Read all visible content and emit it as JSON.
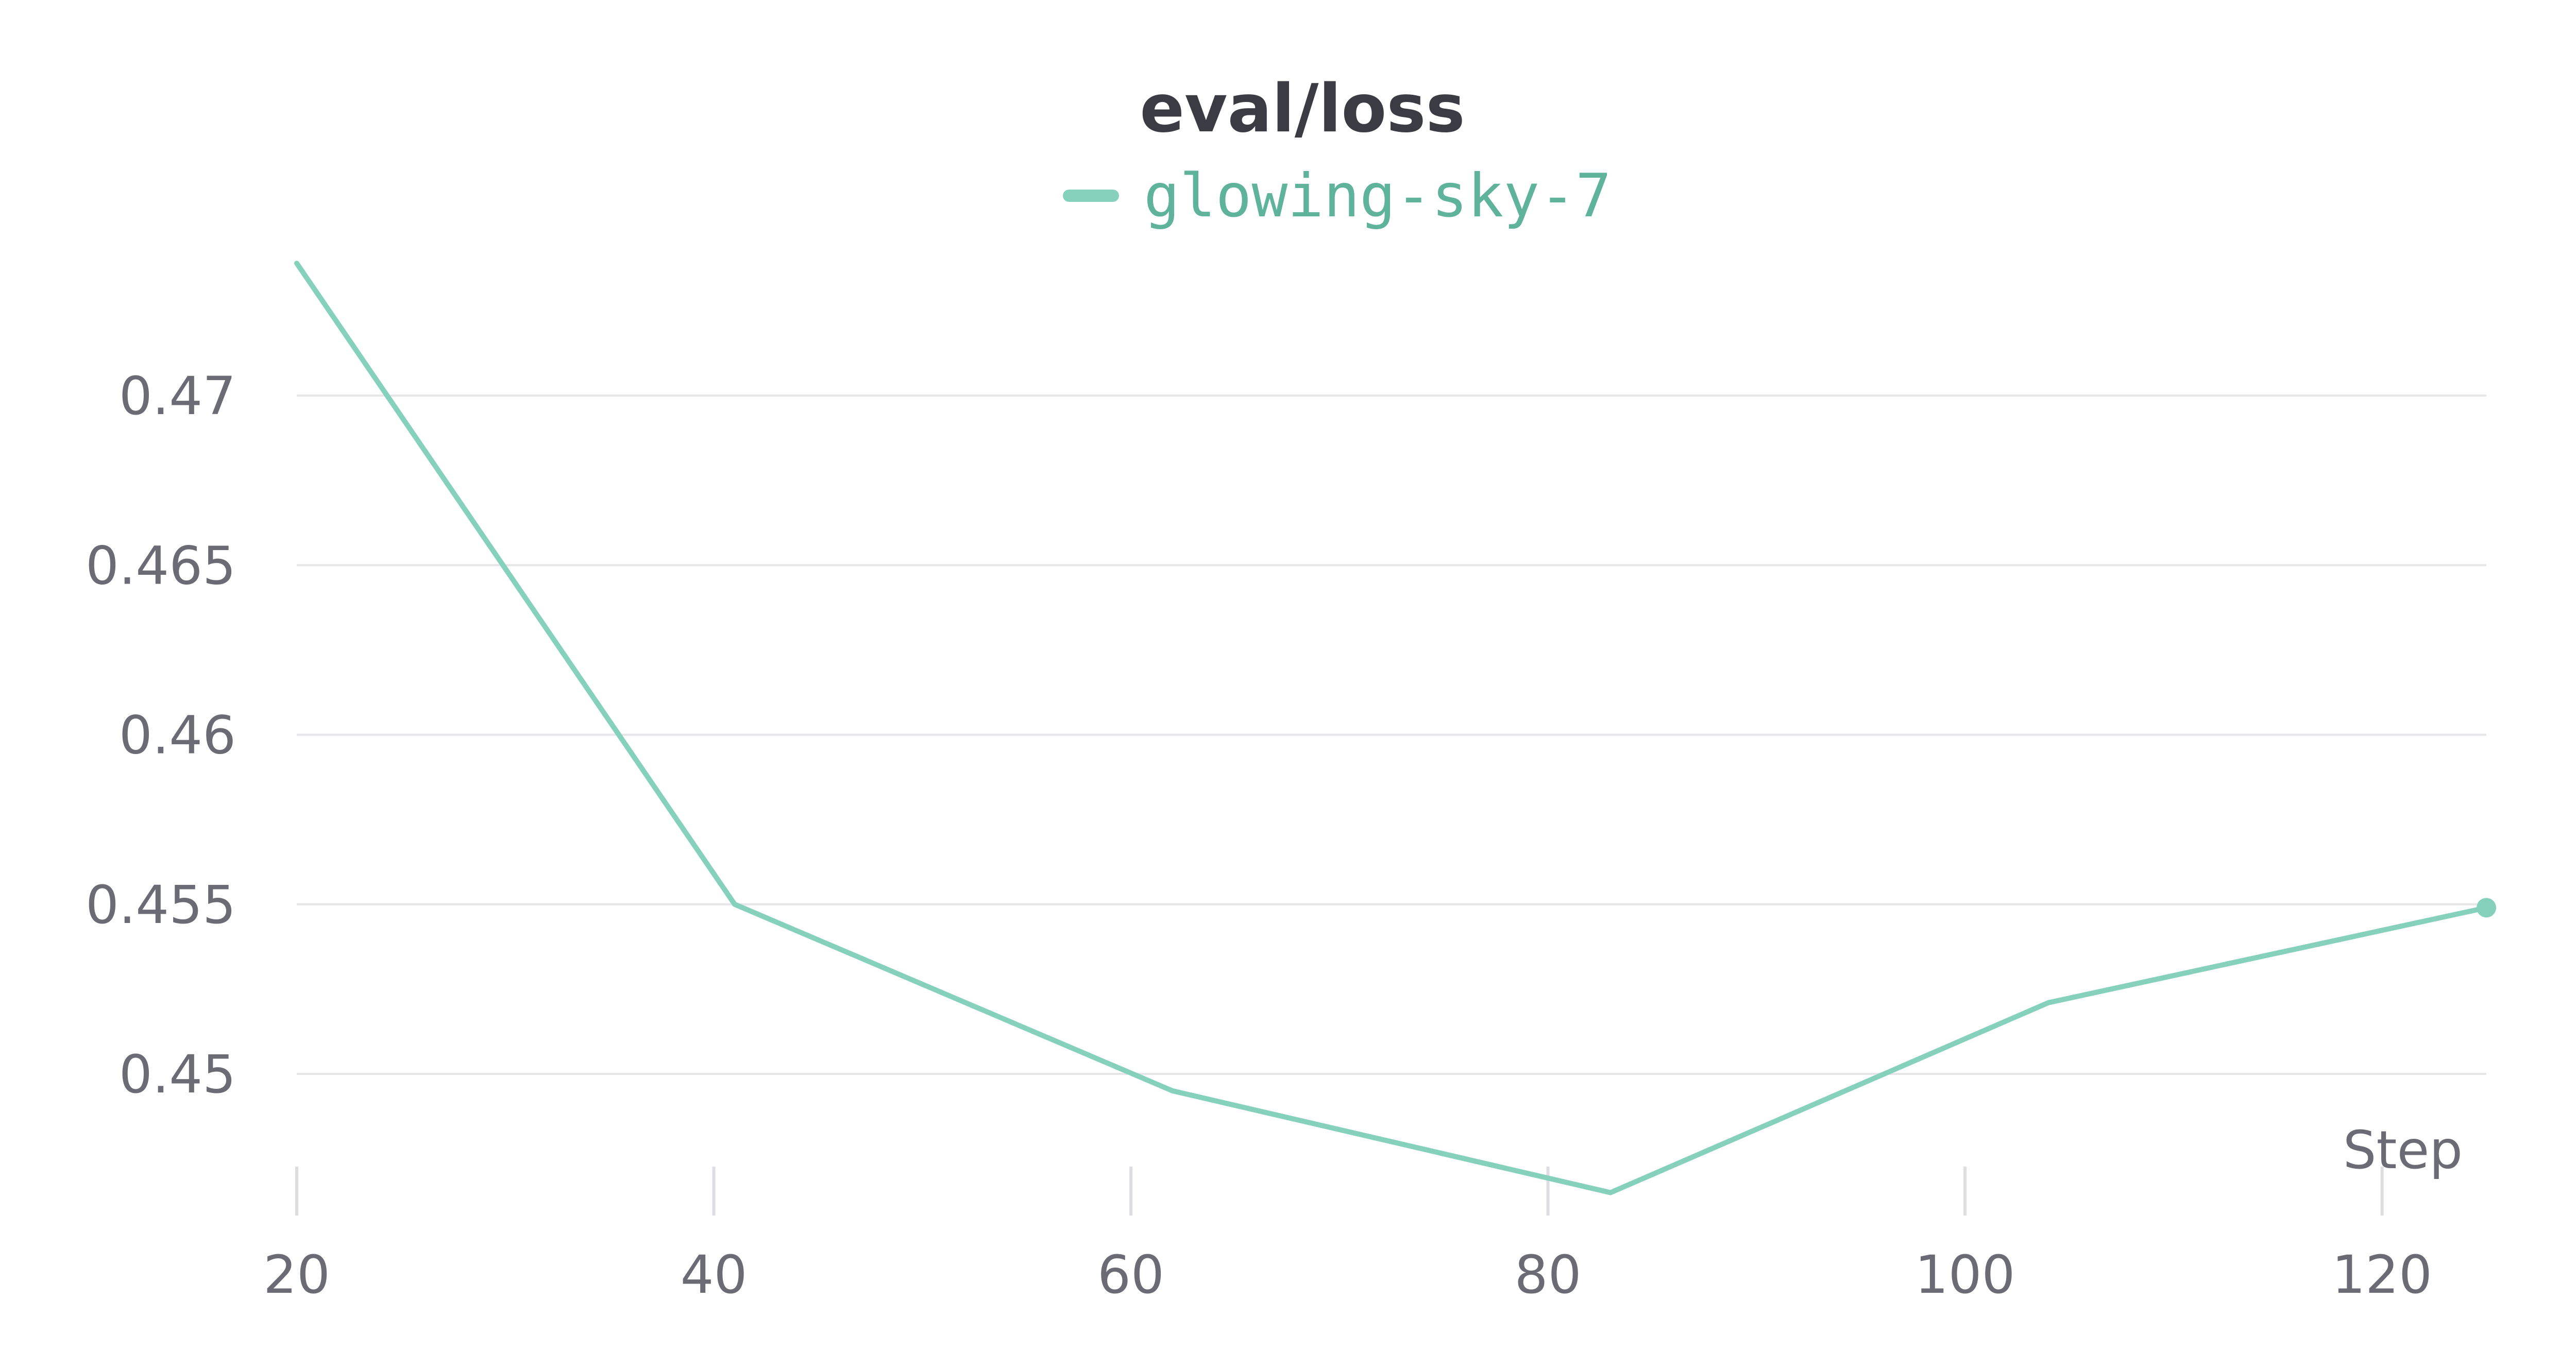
{
  "chart_data": {
    "type": "line",
    "title": "eval/loss",
    "xlabel": "Step",
    "ylabel": "",
    "x_ticks": [
      20,
      40,
      60,
      80,
      100,
      120
    ],
    "y_ticks": [
      0.45,
      0.455,
      0.46,
      0.465,
      0.47
    ],
    "y_tick_labels": [
      "0.45",
      "0.455",
      "0.46",
      "0.465",
      "0.47"
    ],
    "xlim": [
      20,
      125
    ],
    "ylim": [
      0.4465,
      0.4739
    ],
    "grid": true,
    "legend_position": "top-center",
    "series": [
      {
        "name": "glowing-sky-7",
        "color": "#86d1bc",
        "x": [
          20,
          41,
          62,
          83,
          104,
          125
        ],
        "y": [
          0.4739,
          0.455,
          0.4495,
          0.4465,
          0.4521,
          0.4549
        ]
      }
    ]
  }
}
